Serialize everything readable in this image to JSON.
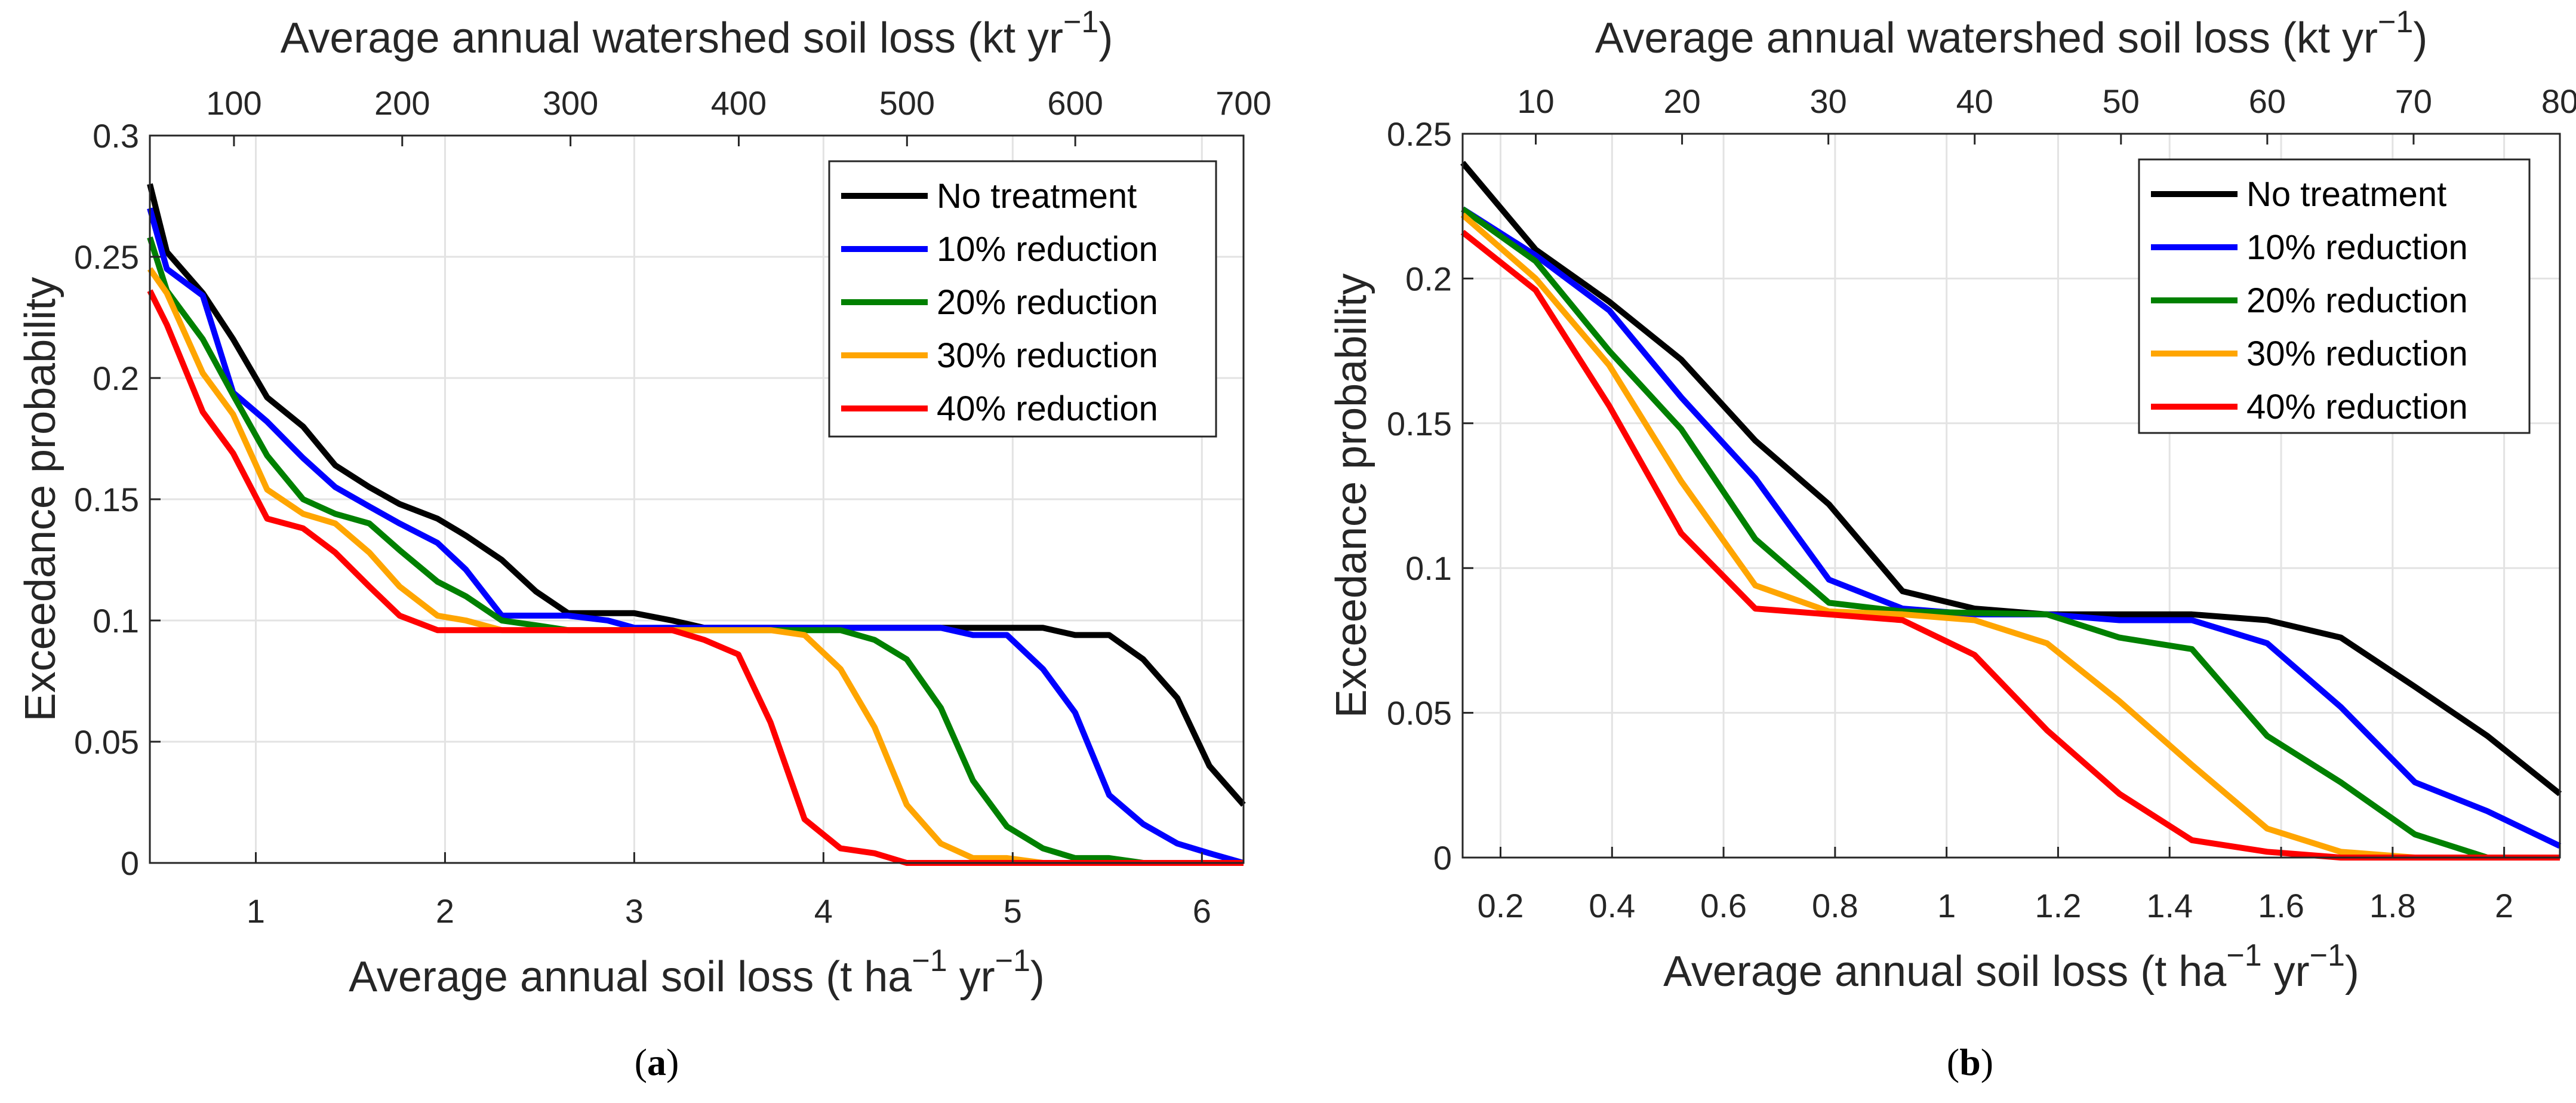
{
  "chart_data": [
    {
      "type": "line",
      "panel_label": "a",
      "xlabel_parts": [
        "Average annual soil loss (t ha",
        "−1",
        " yr",
        "−1",
        ")"
      ],
      "x2label_parts": [
        "Average annual watershed soil loss (kt yr",
        "−1",
        ")"
      ],
      "ylabel": "Exceedance probability",
      "xlim": [
        0.44,
        6.22
      ],
      "x2lim": [
        50,
        700
      ],
      "ylim": [
        0,
        0.3
      ],
      "xticks": [
        1,
        2,
        3,
        4,
        5,
        6
      ],
      "x2ticks": [
        100,
        200,
        300,
        400,
        500,
        600,
        700
      ],
      "yticks": [
        0,
        0.05,
        0.1,
        0.15,
        0.2,
        0.25,
        0.3
      ],
      "ytick_labels": [
        "0",
        "0.05",
        "0.1",
        "0.15",
        "0.2",
        "0.25",
        "0.3"
      ],
      "grid": true,
      "legend_position": "top-right",
      "series": [
        {
          "name": "No treatment",
          "color": "#000000",
          "x": [
            0.44,
            0.53,
            0.72,
            0.88,
            1.06,
            1.25,
            1.42,
            1.6,
            1.76,
            1.96,
            2.11,
            2.3,
            2.48,
            2.65,
            3.0,
            3.2,
            3.37,
            5.16,
            5.33,
            5.51,
            5.69,
            5.87,
            6.04,
            6.22
          ],
          "y": [
            0.28,
            0.252,
            0.235,
            0.216,
            0.192,
            0.18,
            0.164,
            0.155,
            0.148,
            0.142,
            0.135,
            0.125,
            0.112,
            0.103,
            0.103,
            0.1,
            0.097,
            0.097,
            0.094,
            0.094,
            0.084,
            0.068,
            0.04,
            0.024
          ]
        },
        {
          "name": "10% reduction",
          "color": "#0000FF",
          "x": [
            0.44,
            0.53,
            0.72,
            0.88,
            1.06,
            1.25,
            1.42,
            1.6,
            1.76,
            1.96,
            2.11,
            2.3,
            2.65,
            2.86,
            3.0,
            4.62,
            4.79,
            4.97,
            5.16,
            5.33,
            5.51,
            5.69,
            5.87,
            6.04,
            6.22
          ],
          "y": [
            0.27,
            0.245,
            0.234,
            0.194,
            0.182,
            0.167,
            0.155,
            0.147,
            0.14,
            0.132,
            0.121,
            0.102,
            0.102,
            0.1,
            0.097,
            0.097,
            0.094,
            0.094,
            0.08,
            0.062,
            0.028,
            0.016,
            0.008,
            0.004,
            0.0
          ]
        },
        {
          "name": "20% reduction",
          "color": "#008000",
          "x": [
            0.44,
            0.53,
            0.72,
            0.88,
            1.06,
            1.25,
            1.42,
            1.6,
            1.76,
            1.96,
            2.11,
            2.3,
            2.48,
            2.65,
            4.09,
            4.27,
            4.44,
            4.62,
            4.79,
            4.97,
            5.16,
            5.33,
            5.51,
            5.69,
            6.22
          ],
          "y": [
            0.258,
            0.236,
            0.216,
            0.193,
            0.168,
            0.15,
            0.144,
            0.14,
            0.129,
            0.116,
            0.11,
            0.1,
            0.098,
            0.096,
            0.096,
            0.092,
            0.084,
            0.064,
            0.034,
            0.015,
            0.006,
            0.002,
            0.002,
            0.0,
            0.0
          ]
        },
        {
          "name": "30% reduction",
          "color": "#FFA500",
          "x": [
            0.44,
            0.53,
            0.72,
            0.88,
            1.06,
            1.25,
            1.42,
            1.6,
            1.76,
            1.96,
            2.11,
            2.3,
            3.72,
            3.9,
            4.09,
            4.27,
            4.44,
            4.62,
            4.79,
            4.97,
            5.16,
            6.22
          ],
          "y": [
            0.245,
            0.235,
            0.202,
            0.185,
            0.154,
            0.144,
            0.14,
            0.128,
            0.114,
            0.102,
            0.1,
            0.096,
            0.096,
            0.094,
            0.08,
            0.056,
            0.024,
            0.008,
            0.002,
            0.002,
            0.0,
            0.0
          ]
        },
        {
          "name": "40% reduction",
          "color": "#FF0000",
          "x": [
            0.44,
            0.53,
            0.72,
            0.88,
            1.06,
            1.25,
            1.42,
            1.6,
            1.76,
            1.96,
            3.2,
            3.37,
            3.55,
            3.72,
            3.9,
            4.09,
            4.27,
            4.44,
            6.22
          ],
          "y": [
            0.236,
            0.222,
            0.186,
            0.169,
            0.142,
            0.138,
            0.128,
            0.114,
            0.102,
            0.096,
            0.096,
            0.092,
            0.086,
            0.058,
            0.018,
            0.006,
            0.004,
            0.0,
            0.0
          ]
        }
      ]
    },
    {
      "type": "line",
      "panel_label": "b",
      "xlabel_parts": [
        "Average annual soil loss (t ha",
        "−1",
        " yr",
        "−1",
        ")"
      ],
      "x2label_parts": [
        "Average annual watershed soil loss (kt yr",
        "−1",
        ")"
      ],
      "ylabel": "Exceedance probability",
      "xlim": [
        0.132,
        2.1
      ],
      "x2lim": [
        5,
        80
      ],
      "ylim": [
        0,
        0.25
      ],
      "xticks": [
        0.2,
        0.4,
        0.6,
        0.8,
        1,
        1.2,
        1.4,
        1.6,
        1.8,
        2
      ],
      "x2ticks": [
        10,
        20,
        30,
        40,
        50,
        60,
        70,
        80
      ],
      "yticks": [
        0,
        0.05,
        0.1,
        0.15,
        0.2,
        0.25
      ],
      "ytick_labels": [
        "0",
        "0.05",
        "0.1",
        "0.15",
        "0.2",
        "0.25"
      ],
      "grid": true,
      "legend_position": "top-right",
      "series": [
        {
          "name": "No treatment",
          "color": "#000000",
          "x": [
            0.132,
            0.263,
            0.395,
            0.524,
            0.657,
            0.789,
            0.921,
            1.05,
            1.18,
            1.44,
            1.575,
            1.707,
            1.84,
            1.97,
            2.1
          ],
          "y": [
            0.24,
            0.21,
            0.192,
            0.172,
            0.144,
            0.122,
            0.092,
            0.086,
            0.084,
            0.084,
            0.082,
            0.076,
            0.059,
            0.042,
            0.022
          ]
        },
        {
          "name": "10% reduction",
          "color": "#0000FF",
          "x": [
            0.132,
            0.263,
            0.395,
            0.524,
            0.657,
            0.789,
            0.921,
            1.05,
            1.18,
            1.31,
            1.44,
            1.575,
            1.707,
            1.84,
            1.97,
            2.1
          ],
          "y": [
            0.224,
            0.208,
            0.189,
            0.159,
            0.131,
            0.096,
            0.086,
            0.084,
            0.084,
            0.082,
            0.082,
            0.074,
            0.052,
            0.026,
            0.016,
            0.004
          ]
        },
        {
          "name": "20% reduction",
          "color": "#008000",
          "x": [
            0.132,
            0.263,
            0.395,
            0.524,
            0.657,
            0.789,
            0.921,
            1.18,
            1.31,
            1.44,
            1.575,
            1.707,
            1.84,
            1.97,
            2.1
          ],
          "y": [
            0.224,
            0.206,
            0.175,
            0.148,
            0.11,
            0.088,
            0.085,
            0.084,
            0.076,
            0.072,
            0.042,
            0.026,
            0.008,
            0.0,
            0.0
          ]
        },
        {
          "name": "30% reduction",
          "color": "#FFA500",
          "x": [
            0.132,
            0.263,
            0.395,
            0.524,
            0.657,
            0.789,
            0.921,
            1.05,
            1.18,
            1.31,
            1.44,
            1.575,
            1.707,
            1.84,
            2.1
          ],
          "y": [
            0.222,
            0.2,
            0.17,
            0.13,
            0.094,
            0.085,
            0.084,
            0.082,
            0.074,
            0.054,
            0.032,
            0.01,
            0.002,
            0.0,
            0.0
          ]
        },
        {
          "name": "40% reduction",
          "color": "#FF0000",
          "x": [
            0.132,
            0.263,
            0.395,
            0.524,
            0.657,
            0.789,
            0.921,
            1.05,
            1.18,
            1.31,
            1.44,
            1.575,
            1.707,
            2.1
          ],
          "y": [
            0.216,
            0.196,
            0.156,
            0.112,
            0.086,
            0.084,
            0.082,
            0.07,
            0.044,
            0.022,
            0.006,
            0.002,
            0.0,
            0.0
          ]
        }
      ]
    }
  ]
}
